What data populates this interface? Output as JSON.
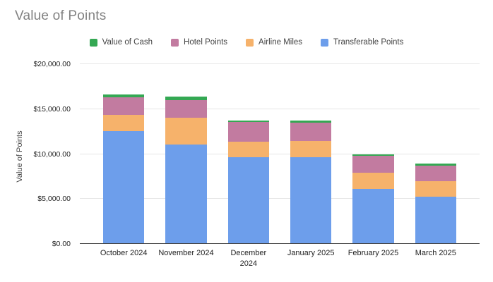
{
  "chart_data": {
    "type": "bar",
    "stacked": true,
    "title": "Value of Points",
    "ylabel": "Value of Points",
    "xlabel": "",
    "ylim": [
      0,
      20000
    ],
    "grid": true,
    "legend_position": "top",
    "y_ticks": [
      {
        "value": 0,
        "label": "$0.00"
      },
      {
        "value": 5000,
        "label": "$5,000.00"
      },
      {
        "value": 10000,
        "label": "$10,000.00"
      },
      {
        "value": 15000,
        "label": "$15,000.00"
      },
      {
        "value": 20000,
        "label": "$20,000.00"
      }
    ],
    "categories": [
      "October 2024",
      "November 2024",
      "December\n2024",
      "January 2025",
      "February 2025",
      "March 2025"
    ],
    "series": [
      {
        "name": "Transferable Points",
        "color": "#6d9eeb",
        "values": [
          12550,
          11050,
          9650,
          9650,
          6150,
          5260
        ]
      },
      {
        "name": "Airline Miles",
        "color": "#f6b26b",
        "values": [
          1800,
          3000,
          1720,
          1800,
          1800,
          1750
        ]
      },
      {
        "name": "Hotel Points",
        "color": "#c27ba0",
        "values": [
          1950,
          1980,
          2210,
          2030,
          1820,
          1720
        ]
      },
      {
        "name": "Value of Cash",
        "color": "#34a853",
        "values": [
          330,
          360,
          160,
          240,
          200,
          210
        ]
      }
    ],
    "legend_order": [
      "Value of Cash",
      "Hotel Points",
      "Airline Miles",
      "Transferable Points"
    ],
    "approx_totals": [
      16630,
      16390,
      13740,
      13720,
      9970,
      8940
    ]
  }
}
